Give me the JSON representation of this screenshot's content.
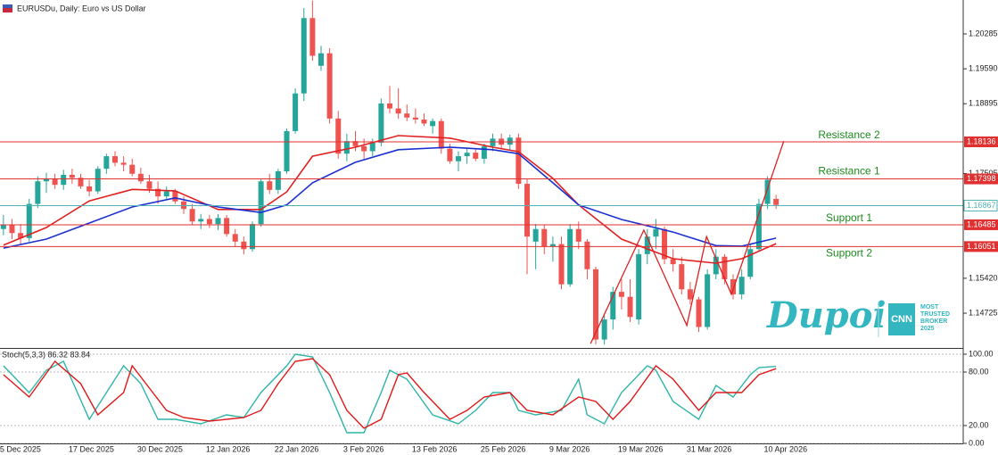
{
  "chart_data": [
    {
      "type": "candlestick",
      "title": "EURUSDu, Daily: Euro vs US Dollar",
      "categories": [
        "5 Dec 2025",
        null,
        null,
        null,
        null,
        null,
        null,
        null,
        "17 Dec 2025",
        null,
        null,
        null,
        null,
        null,
        null,
        null,
        "30 Dec 2025",
        null,
        null,
        null,
        null,
        null,
        null,
        null,
        "12 Jan 2026",
        null,
        null,
        null,
        null,
        null,
        null,
        null,
        "22 Jan 2026",
        null,
        null,
        null,
        null,
        null,
        null,
        null,
        "3 Feb 2026",
        null,
        null,
        null,
        null,
        null,
        null,
        null,
        "13 Feb 2026",
        null,
        null,
        null,
        null,
        null,
        null,
        null,
        "25 Feb 2026",
        null,
        null,
        null,
        null,
        null,
        null,
        null,
        "9 Mar 2026",
        null,
        null,
        null,
        null,
        null,
        null,
        null,
        "19 Mar 2026",
        null,
        null,
        null,
        null,
        null,
        null,
        null,
        "31 Mar 2026",
        null,
        null,
        null,
        null,
        null,
        null,
        null,
        null,
        "10 Apr 2026",
        null
      ],
      "open": [
        1.164,
        1.1648,
        1.1632,
        1.1622,
        1.169,
        1.1735,
        1.174,
        1.1728,
        1.1748,
        1.1742,
        1.1725,
        1.1715,
        1.176,
        1.1785,
        1.1772,
        1.1768,
        1.175,
        1.1735,
        1.172,
        1.1705,
        1.1715,
        1.1695,
        1.168,
        1.1655,
        1.166,
        1.165,
        1.1662,
        1.163,
        1.1615,
        1.16,
        1.165,
        1.1735,
        1.1718,
        1.1755,
        1.1835,
        1.191,
        1.206,
        1.1965,
        1.199,
        1.186,
        1.179,
        1.1815,
        1.1805,
        1.1795,
        1.1812,
        1.189,
        1.188,
        1.187,
        1.1862,
        1.1858,
        1.1845,
        1.1855,
        1.18,
        1.1775,
        1.1785,
        1.1792,
        1.178,
        1.1805,
        1.182,
        1.1808,
        1.1822,
        1.173,
        1.1615,
        1.164,
        1.1605,
        1.161,
        1.153,
        1.164,
        1.1615,
        1.156,
        1.142,
        1.146,
        1.1515,
        1.1505,
        1.146,
        1.159,
        1.1625,
        1.164,
        1.158,
        1.157,
        1.152,
        1.15,
        1.1445,
        1.155,
        1.1585,
        1.154,
        1.151,
        1.1545,
        1.16,
        1.169,
        1.17
      ],
      "high": [
        1.1668,
        1.166,
        1.165,
        1.17,
        1.1745,
        1.1752,
        1.175,
        1.1758,
        1.176,
        1.175,
        1.1738,
        1.1765,
        1.179,
        1.1795,
        1.1785,
        1.178,
        1.1762,
        1.1748,
        1.1735,
        1.1725,
        1.172,
        1.1705,
        1.169,
        1.167,
        1.1668,
        1.167,
        1.1668,
        1.164,
        1.1625,
        1.1655,
        1.174,
        1.175,
        1.176,
        1.184,
        1.192,
        1.208,
        1.2095,
        1.2005,
        1.2,
        1.1875,
        1.183,
        1.1835,
        1.182,
        1.182,
        1.19,
        1.1925,
        1.192,
        1.1888,
        1.188,
        1.187,
        1.186,
        1.186,
        1.181,
        1.1795,
        1.18,
        1.18,
        1.181,
        1.183,
        1.183,
        1.1828,
        1.183,
        1.174,
        1.165,
        1.1648,
        1.1625,
        1.1625,
        1.165,
        1.1655,
        1.162,
        1.1565,
        1.147,
        1.1525,
        1.154,
        1.154,
        1.16,
        1.164,
        1.166,
        1.1645,
        1.16,
        1.1585,
        1.1535,
        1.1505,
        1.156,
        1.16,
        1.159,
        1.155,
        1.156,
        1.161,
        1.17,
        1.1745,
        1.1708
      ],
      "low": [
        1.1628,
        1.162,
        1.161,
        1.1615,
        1.1682,
        1.1712,
        1.172,
        1.1718,
        1.173,
        1.172,
        1.1705,
        1.171,
        1.175,
        1.1765,
        1.1755,
        1.1745,
        1.173,
        1.1712,
        1.169,
        1.1698,
        1.169,
        1.167,
        1.1648,
        1.164,
        1.1642,
        1.1638,
        1.1625,
        1.1605,
        1.159,
        1.1595,
        1.1645,
        1.171,
        1.171,
        1.175,
        1.183,
        1.1895,
        1.1975,
        1.1955,
        1.185,
        1.178,
        1.1775,
        1.1795,
        1.178,
        1.1785,
        1.1805,
        1.187,
        1.186,
        1.1855,
        1.185,
        1.1845,
        1.183,
        1.179,
        1.177,
        1.1755,
        1.177,
        1.1775,
        1.177,
        1.1795,
        1.18,
        1.1798,
        1.172,
        1.155,
        1.156,
        1.159,
        1.1575,
        1.152,
        1.1525,
        1.16,
        1.154,
        1.141,
        1.141,
        1.144,
        1.148,
        1.1455,
        1.145,
        1.157,
        1.16,
        1.157,
        1.1555,
        1.151,
        1.149,
        1.1435,
        1.144,
        1.154,
        1.153,
        1.15,
        1.15,
        1.154,
        1.1595,
        1.168,
        1.168
      ],
      "close": [
        1.1648,
        1.1632,
        1.1622,
        1.169,
        1.1735,
        1.174,
        1.1728,
        1.1748,
        1.1742,
        1.1725,
        1.1715,
        1.176,
        1.1785,
        1.1772,
        1.1768,
        1.175,
        1.1735,
        1.172,
        1.1705,
        1.1715,
        1.1695,
        1.168,
        1.1655,
        1.166,
        1.165,
        1.1662,
        1.163,
        1.1615,
        1.16,
        1.165,
        1.1735,
        1.1718,
        1.1755,
        1.1835,
        1.191,
        1.206,
        1.1985,
        1.199,
        1.186,
        1.179,
        1.1815,
        1.1805,
        1.1795,
        1.1812,
        1.189,
        1.188,
        1.187,
        1.1862,
        1.1858,
        1.185,
        1.1855,
        1.18,
        1.1775,
        1.1785,
        1.1792,
        1.178,
        1.1805,
        1.182,
        1.1808,
        1.1822,
        1.173,
        1.1625,
        1.164,
        1.1605,
        1.161,
        1.153,
        1.164,
        1.1615,
        1.156,
        1.142,
        1.146,
        1.1515,
        1.1505,
        1.1465,
        1.159,
        1.1625,
        1.164,
        1.158,
        1.157,
        1.152,
        1.15,
        1.1445,
        1.155,
        1.1585,
        1.154,
        1.151,
        1.1545,
        1.16,
        1.169,
        1.1738,
        1.1688
      ],
      "up_color": "#26a69a",
      "down_color": "#ef5350",
      "xlim": [
        -0.4,
        111.8
      ],
      "ylim": [
        1.14033,
        1.2096
      ],
      "yticks": [
        1.20285,
        {
          "value": 1.1959,
          "label": "1.19590"
        },
        1.18895,
        1.17505,
        {
          "value": 1.1542,
          "label": "1.15420"
        },
        1.14725
      ],
      "lines": [
        {
          "color": "#e02020",
          "x": [
            0,
            5,
            10,
            15,
            20,
            25,
            30,
            33,
            36,
            41,
            46,
            52,
            57,
            60,
            64,
            67,
            72,
            78,
            83,
            86,
            90
          ],
          "values": [
            1.1608,
            1.1643,
            1.1696,
            1.1719,
            1.1716,
            1.1679,
            1.1679,
            1.1714,
            1.1785,
            1.1803,
            1.1826,
            1.1821,
            1.1803,
            1.1794,
            1.1741,
            1.1688,
            1.162,
            1.1581,
            1.1572,
            1.1581,
            1.1611
          ]
        },
        {
          "color": "#1a2fd0",
          "x": [
            0,
            5,
            10,
            15,
            20,
            25,
            30,
            33,
            36,
            41,
            46,
            52,
            57,
            60,
            64,
            67,
            72,
            78,
            83,
            86,
            90
          ],
          "values": [
            1.1602,
            1.162,
            1.1652,
            1.1684,
            1.1702,
            1.1684,
            1.1673,
            1.1688,
            1.1732,
            1.1773,
            1.1798,
            1.1803,
            1.1798,
            1.179,
            1.1732,
            1.1688,
            1.1659,
            1.1634,
            1.1607,
            1.1606,
            1.1622
          ]
        }
      ],
      "levels": [
        {
          "value": 1.18136,
          "label": "Resistance 2",
          "color": "#e03030"
        },
        {
          "value": 1.17398,
          "label": "Resistance 1",
          "color": "#e03030"
        },
        {
          "value": 1.16485,
          "label": "Support 1",
          "color": "#e03030"
        },
        {
          "value": 1.16051,
          "label": "Support 2",
          "color": "#e03030"
        }
      ],
      "current_price": 1.16867,
      "current_color": "#4fb3b8",
      "trendline": {
        "color": "#e02020",
        "x": [
          68.4,
          74.6,
          79.6,
          81.9,
          84.8,
          90.9
        ],
        "values": [
          1.1412,
          1.1638,
          1.1448,
          1.1625,
          1.151,
          1.1815
        ]
      },
      "watermark": {
        "brand": "Dupoin",
        "badge": "CNN",
        "tagline": [
          "MOST",
          "TRUSTED",
          "BROKER",
          "2025"
        ]
      }
    },
    {
      "type": "line",
      "title": "Stoch(5,3,3) 86.32 83.84",
      "xlim": [
        -0.4,
        111.8
      ],
      "ylim": [
        0,
        105
      ],
      "yticks": [
        {
          "value": 100,
          "label": "100.00"
        },
        {
          "value": 80,
          "label": "80.00"
        },
        {
          "value": 20,
          "label": "20.00"
        },
        {
          "value": 0,
          "label": "0.00"
        }
      ],
      "series": [
        {
          "color": "#2fb5a8",
          "x": [
            0,
            3,
            5,
            7,
            10,
            12,
            14,
            16,
            18,
            20,
            23,
            26,
            28,
            30,
            33,
            34,
            36,
            38,
            40,
            42,
            44,
            45,
            47,
            50,
            53,
            55,
            57,
            59,
            60,
            62,
            65,
            67,
            68,
            70,
            72,
            75,
            76,
            78,
            81,
            83,
            85,
            87,
            88,
            90
          ],
          "values": [
            87,
            57,
            82,
            92,
            27,
            57,
            87,
            67,
            27,
            27,
            22,
            32,
            29,
            57,
            87,
            100,
            97,
            57,
            12,
            12,
            57,
            82,
            72,
            32,
            22,
            37,
            57,
            57,
            37,
            32,
            37,
            72,
            32,
            22,
            57,
            87,
            82,
            47,
            27,
            65,
            52,
            77,
            85,
            86.32
          ]
        },
        {
          "color": "#e01818",
          "x": [
            0,
            3,
            6,
            9,
            11,
            14,
            15,
            17,
            19,
            21,
            24,
            28,
            30,
            32,
            34,
            36,
            38,
            40,
            42,
            44,
            46,
            47,
            49,
            52,
            54,
            56,
            59,
            61,
            64,
            67,
            69,
            71,
            73,
            76,
            78,
            81,
            83,
            86,
            88,
            90
          ],
          "values": [
            77,
            52,
            92,
            67,
            32,
            57,
            87,
            62,
            37,
            29,
            25,
            29,
            37,
            67,
            92,
            95,
            77,
            37,
            17,
            27,
            77,
            79,
            57,
            27,
            37,
            52,
            57,
            37,
            32,
            52,
            47,
            27,
            47,
            87,
            72,
            37,
            57,
            57,
            77,
            83.84
          ]
        }
      ]
    }
  ]
}
